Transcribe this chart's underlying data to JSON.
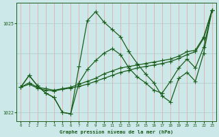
{
  "xlabel": "Graphe pression niveau de la mer (hPa)",
  "bg_color": "#cce8e8",
  "line_color": "#1a5c1a",
  "grid_color_v": "#e8a0a0",
  "grid_color_h": "#b0c8c8",
  "axis_color": "#1a5c1a",
  "ylim": [
    1021.7,
    1025.7
  ],
  "xlim": [
    -0.5,
    23.5
  ],
  "ytick_vals": [
    1022,
    1025
  ],
  "ytick_labels": [
    "1022",
    "1025"
  ],
  "xticks": [
    0,
    1,
    2,
    3,
    4,
    5,
    6,
    7,
    8,
    9,
    10,
    11,
    12,
    13,
    14,
    15,
    16,
    17,
    18,
    19,
    20,
    21,
    22,
    23
  ],
  "s1": [
    1022.85,
    1023.25,
    1022.9,
    1022.65,
    1022.5,
    1022.0,
    1021.95,
    1023.55,
    1025.1,
    1025.4,
    1025.05,
    1024.8,
    1024.55,
    1024.05,
    1023.65,
    1023.3,
    1023.0,
    1022.55,
    1022.35,
    1023.15,
    1023.35,
    1023.05,
    1024.0,
    1025.45
  ],
  "s2": [
    1022.85,
    1023.25,
    1022.9,
    1022.65,
    1022.5,
    1022.0,
    1021.95,
    1023.0,
    1023.45,
    1023.75,
    1024.0,
    1024.15,
    1023.95,
    1023.5,
    1023.2,
    1023.0,
    1022.75,
    1022.65,
    1023.05,
    1023.5,
    1023.8,
    1023.5,
    1024.2,
    1025.45
  ],
  "s3": [
    1022.85,
    1023.0,
    1022.85,
    1022.8,
    1022.75,
    1022.8,
    1022.85,
    1022.95,
    1023.05,
    1023.15,
    1023.3,
    1023.4,
    1023.5,
    1023.55,
    1023.6,
    1023.65,
    1023.7,
    1023.75,
    1023.8,
    1023.9,
    1024.05,
    1024.1,
    1024.55,
    1025.45
  ],
  "s4": [
    1022.85,
    1022.95,
    1022.82,
    1022.75,
    1022.72,
    1022.78,
    1022.82,
    1022.88,
    1022.95,
    1023.05,
    1023.15,
    1023.25,
    1023.35,
    1023.42,
    1023.5,
    1023.55,
    1023.6,
    1023.65,
    1023.72,
    1023.82,
    1023.95,
    1024.05,
    1024.5,
    1025.45
  ]
}
